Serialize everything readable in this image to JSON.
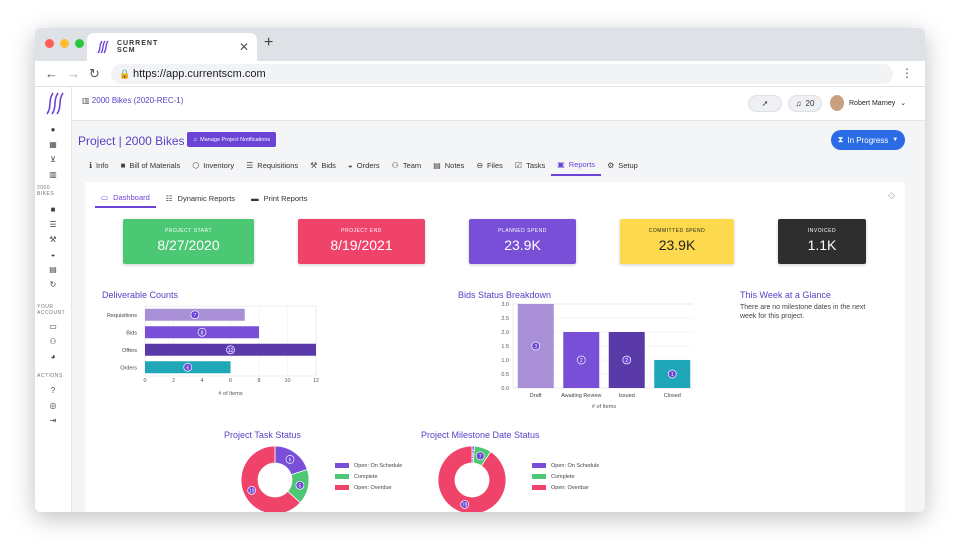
{
  "browser": {
    "tab_title_line1": "CURRENT",
    "tab_title_line2": "SCM",
    "url": "https://app.currentscm.com"
  },
  "topbar": {
    "breadcrumb": "2000 Bikes (2020-REC-1)",
    "notification_count": "20",
    "user_name": "Robert Marney"
  },
  "sidebar": {
    "section_project_line1": "2000",
    "section_project_line2": "BIKES",
    "section_account_line1": "YOUR",
    "section_account_line2": "ACCOUNT",
    "section_actions": "ACTIONS"
  },
  "project": {
    "title": "Project | 2000 Bikes",
    "manage_button": "Manage Project Notifications",
    "status_button": "In Progress"
  },
  "nav_tabs": [
    {
      "label": "Info",
      "icon": "info-icon"
    },
    {
      "label": "Bill of Materials",
      "icon": "folder-icon"
    },
    {
      "label": "Inventory",
      "icon": "box-icon"
    },
    {
      "label": "Requisitions",
      "icon": "list-icon"
    },
    {
      "label": "Bids",
      "icon": "gavel-icon"
    },
    {
      "label": "Orders",
      "icon": "basket-icon"
    },
    {
      "label": "Team",
      "icon": "team-icon"
    },
    {
      "label": "Notes",
      "icon": "note-icon"
    },
    {
      "label": "Files",
      "icon": "link-icon"
    },
    {
      "label": "Tasks",
      "icon": "checkbox-icon"
    },
    {
      "label": "Reports",
      "icon": "report-icon"
    },
    {
      "label": "Setup",
      "icon": "gear-icon"
    }
  ],
  "sub_tabs": [
    {
      "label": "Dashboard"
    },
    {
      "label": "Dynamic Reports"
    },
    {
      "label": "Print Reports"
    }
  ],
  "cards": [
    {
      "label": "Project Start",
      "value": "8/27/2020",
      "color": "#4cc774"
    },
    {
      "label": "Project End",
      "value": "8/19/2021",
      "color": "#f0436a"
    },
    {
      "label": "Planned Spend",
      "value": "23.9K",
      "color": "#7a4fd8"
    },
    {
      "label": "Committed Spend",
      "value": "23.9K",
      "color": "#fcd94d"
    },
    {
      "label": "Invoiced",
      "value": "1.1K",
      "color": "#2e2e2e"
    }
  ],
  "week": {
    "title": "This Week at a Glance",
    "text": "There are no milestone dates in the next week for this project."
  },
  "chart_data": [
    {
      "type": "bar",
      "orientation": "horizontal",
      "title": "Deliverable Counts",
      "categories": [
        "Requisitions",
        "Bids",
        "Offers",
        "Orders"
      ],
      "values": [
        7,
        8,
        12,
        6
      ],
      "colors": [
        "#a98fd6",
        "#7a4fd8",
        "#5a3aa8",
        "#1fa7b8"
      ],
      "xlabel": "# of Items",
      "xlim": [
        0,
        12
      ],
      "xticks": [
        "0",
        "2",
        "4",
        "6",
        "8",
        "10",
        "12"
      ]
    },
    {
      "type": "bar",
      "title": "Bids Status Breakdown",
      "categories": [
        "Draft",
        "Awaiting Review",
        "Issued",
        "Closed"
      ],
      "values": [
        3,
        2,
        2,
        1
      ],
      "colors": [
        "#a98fd6",
        "#7a4fd8",
        "#5a3aa8",
        "#1fa7b8"
      ],
      "xlabel": "# of Items",
      "ylim": [
        0,
        3
      ],
      "yticks": [
        "0.0",
        "0.5",
        "1.0",
        "1.5",
        "2.0",
        "2.5",
        "3.0"
      ]
    },
    {
      "type": "pie",
      "title": "Project Task Status",
      "labels": [
        "Open: On Schedule",
        "Complete",
        "Open: Overdue"
      ],
      "values": [
        6,
        5,
        19
      ],
      "colors": [
        "#7a4fd8",
        "#4cc774",
        "#f0436a"
      ]
    },
    {
      "type": "pie",
      "title": "Project Milestone Date Status",
      "labels": [
        "Open: On Schedule",
        "Complete",
        "Open: Overdue"
      ],
      "values": [
        1,
        7,
        78
      ],
      "colors": [
        "#7a4fd8",
        "#4cc774",
        "#f0436a"
      ]
    }
  ],
  "colors": {
    "accent": "#6b44d6",
    "primary_button": "#2c6be6"
  }
}
